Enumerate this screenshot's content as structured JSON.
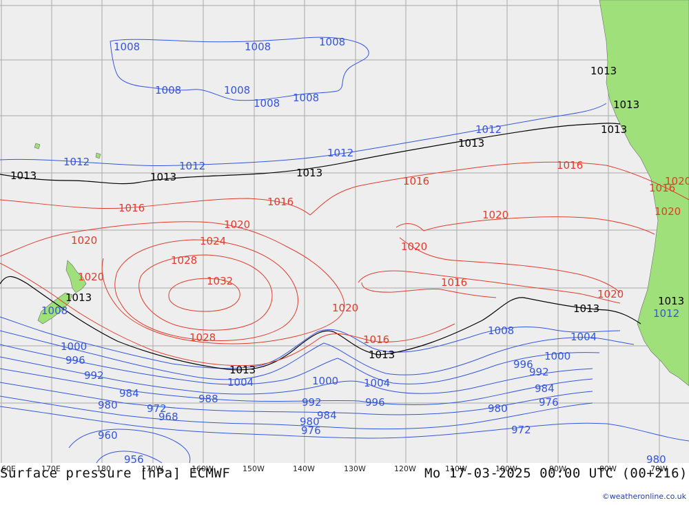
{
  "title": "Surface pressure [hPa] ECMWF",
  "valid_time": "Mo 17-03-2025 00:00 UTC (00+216)",
  "credit": "©weatheronline.co.uk",
  "colors": {
    "ocean": "#eeeeee",
    "land": "#9fe07a",
    "low_isobar": "#3355dd",
    "high_isobar": "#e03b2b",
    "std_isobar": "#000000"
  },
  "longitude_labels": [
    "60E",
    "170E",
    "180",
    "170W",
    "160W",
    "150W",
    "140W",
    "130W",
    "120W",
    "110W",
    "100W",
    "90W",
    "80W",
    "70W"
  ],
  "isobar_labels": [
    {
      "v": "1008",
      "c": "blue"
    },
    {
      "v": "1008",
      "c": "blue"
    },
    {
      "v": "1008",
      "c": "blue"
    },
    {
      "v": "1008",
      "c": "blue"
    },
    {
      "v": "1008",
      "c": "blue"
    },
    {
      "v": "1008",
      "c": "blue"
    },
    {
      "v": "1008",
      "c": "blue"
    },
    {
      "v": "1012",
      "c": "blue"
    },
    {
      "v": "1012",
      "c": "blue"
    },
    {
      "v": "1012",
      "c": "blue"
    },
    {
      "v": "1012",
      "c": "blue"
    },
    {
      "v": "1013",
      "c": "black"
    },
    {
      "v": "1013",
      "c": "black"
    },
    {
      "v": "1013",
      "c": "black"
    },
    {
      "v": "1013",
      "c": "black"
    },
    {
      "v": "1013",
      "c": "black"
    },
    {
      "v": "1013",
      "c": "black"
    },
    {
      "v": "1016",
      "c": "red"
    },
    {
      "v": "1016",
      "c": "red"
    },
    {
      "v": "1016",
      "c": "red"
    },
    {
      "v": "1016",
      "c": "red"
    },
    {
      "v": "1020",
      "c": "red"
    },
    {
      "v": "1020",
      "c": "red"
    },
    {
      "v": "1020",
      "c": "red"
    },
    {
      "v": "1020",
      "c": "red"
    },
    {
      "v": "1020",
      "c": "red"
    },
    {
      "v": "1024",
      "c": "red"
    },
    {
      "v": "1028",
      "c": "red"
    },
    {
      "v": "1028",
      "c": "red"
    },
    {
      "v": "1032",
      "c": "red"
    },
    {
      "v": "1020",
      "c": "red"
    },
    {
      "v": "1016",
      "c": "red"
    },
    {
      "v": "1016",
      "c": "red"
    },
    {
      "v": "1020",
      "c": "red"
    },
    {
      "v": "1013",
      "c": "black"
    },
    {
      "v": "1013",
      "c": "black"
    },
    {
      "v": "1013",
      "c": "black"
    },
    {
      "v": "1013",
      "c": "black"
    },
    {
      "v": "1008",
      "c": "blue"
    },
    {
      "v": "1000",
      "c": "blue"
    },
    {
      "v": "996",
      "c": "blue"
    },
    {
      "v": "992",
      "c": "blue"
    },
    {
      "v": "984",
      "c": "blue"
    },
    {
      "v": "980",
      "c": "blue"
    },
    {
      "v": "972",
      "c": "blue"
    },
    {
      "v": "968",
      "c": "blue"
    },
    {
      "v": "988",
      "c": "blue"
    },
    {
      "v": "960",
      "c": "blue"
    },
    {
      "v": "956",
      "c": "blue"
    },
    {
      "v": "1004",
      "c": "blue"
    },
    {
      "v": "1000",
      "c": "blue"
    },
    {
      "v": "1004",
      "c": "blue"
    },
    {
      "v": "992",
      "c": "blue"
    },
    {
      "v": "996",
      "c": "blue"
    },
    {
      "v": "984",
      "c": "blue"
    },
    {
      "v": "980",
      "c": "blue"
    },
    {
      "v": "976",
      "c": "blue"
    },
    {
      "v": "1008",
      "c": "blue"
    },
    {
      "v": "1004",
      "c": "blue"
    },
    {
      "v": "1000",
      "c": "blue"
    },
    {
      "v": "996",
      "c": "blue"
    },
    {
      "v": "992",
      "c": "blue"
    },
    {
      "v": "984",
      "c": "blue"
    },
    {
      "v": "976",
      "c": "blue"
    },
    {
      "v": "980",
      "c": "blue"
    },
    {
      "v": "972",
      "c": "blue"
    },
    {
      "v": "980",
      "c": "blue"
    },
    {
      "v": "1013",
      "c": "black"
    },
    {
      "v": "1016",
      "c": "red"
    },
    {
      "v": "1020",
      "c": "red"
    },
    {
      "v": "1020",
      "c": "red"
    },
    {
      "v": "1012",
      "c": "blue"
    },
    {
      "v": "1013",
      "c": "black"
    }
  ]
}
